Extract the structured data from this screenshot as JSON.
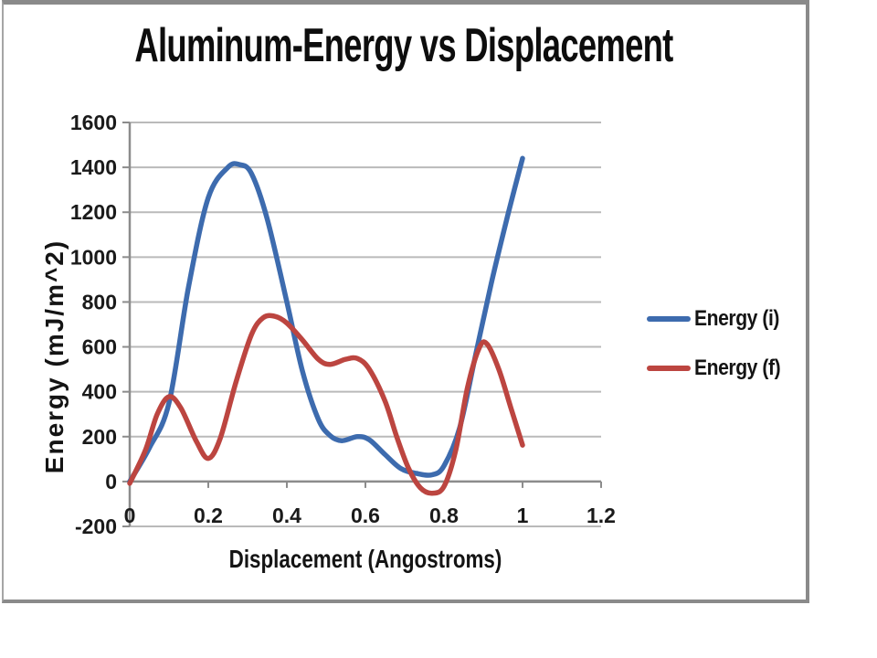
{
  "chart_data": {
    "type": "line",
    "title": "Aluminum-Energy vs Displacement",
    "xlabel": "Displacement (Angostroms)",
    "ylabel": "Energy (mJ/m^2)",
    "xlim": [
      0,
      1.2
    ],
    "ylim": [
      -200,
      1600
    ],
    "grid": "horizontal",
    "legend_position": "right",
    "x_tick_values": [
      0,
      0.2,
      0.4,
      0.6,
      0.8,
      1,
      1.2
    ],
    "x_tick_labels": [
      "0",
      "0.2",
      "0.4",
      "0.6",
      "0.8",
      "1",
      "1.2"
    ],
    "y_tick_values": [
      -200,
      0,
      200,
      400,
      600,
      800,
      1000,
      1200,
      1400,
      1600
    ],
    "y_tick_labels": [
      "-200",
      "0",
      "200",
      "400",
      "600",
      "800",
      "1000",
      "1200",
      "1400",
      "1600"
    ],
    "colors": {
      "gridline": "#bababa",
      "axis": "#8c8c8c",
      "text": "#1a1a1a"
    },
    "series": [
      {
        "name": "Energy (i)",
        "color": "#3d6bae",
        "points": [
          [
            0,
            0
          ],
          [
            0.05,
            150
          ],
          [
            0.1,
            350
          ],
          [
            0.15,
            870
          ],
          [
            0.2,
            1265
          ],
          [
            0.25,
            1400
          ],
          [
            0.28,
            1412
          ],
          [
            0.31,
            1372
          ],
          [
            0.35,
            1170
          ],
          [
            0.4,
            800
          ],
          [
            0.44,
            490
          ],
          [
            0.48,
            278
          ],
          [
            0.51,
            205
          ],
          [
            0.54,
            182
          ],
          [
            0.58,
            200
          ],
          [
            0.61,
            186
          ],
          [
            0.65,
            120
          ],
          [
            0.69,
            58
          ],
          [
            0.73,
            36
          ],
          [
            0.77,
            30
          ],
          [
            0.8,
            70
          ],
          [
            0.84,
            240
          ],
          [
            0.88,
            560
          ],
          [
            0.92,
            880
          ],
          [
            0.96,
            1170
          ],
          [
            1,
            1440
          ]
        ]
      },
      {
        "name": "Energy (f)",
        "color": "#bc4540",
        "points": [
          [
            0,
            -8
          ],
          [
            0.04,
            140
          ],
          [
            0.07,
            300
          ],
          [
            0.1,
            378
          ],
          [
            0.13,
            328
          ],
          [
            0.17,
            178
          ],
          [
            0.2,
            103
          ],
          [
            0.23,
            190
          ],
          [
            0.27,
            440
          ],
          [
            0.31,
            655
          ],
          [
            0.34,
            730
          ],
          [
            0.37,
            736
          ],
          [
            0.4,
            706
          ],
          [
            0.44,
            630
          ],
          [
            0.48,
            545
          ],
          [
            0.51,
            522
          ],
          [
            0.55,
            545
          ],
          [
            0.58,
            548
          ],
          [
            0.61,
            500
          ],
          [
            0.65,
            358
          ],
          [
            0.68,
            198
          ],
          [
            0.71,
            58
          ],
          [
            0.74,
            -28
          ],
          [
            0.77,
            -52
          ],
          [
            0.8,
            -22
          ],
          [
            0.83,
            140
          ],
          [
            0.86,
            420
          ],
          [
            0.89,
            596
          ],
          [
            0.91,
            612
          ],
          [
            0.94,
            498
          ],
          [
            0.97,
            330
          ],
          [
            1,
            162
          ]
        ]
      }
    ]
  }
}
